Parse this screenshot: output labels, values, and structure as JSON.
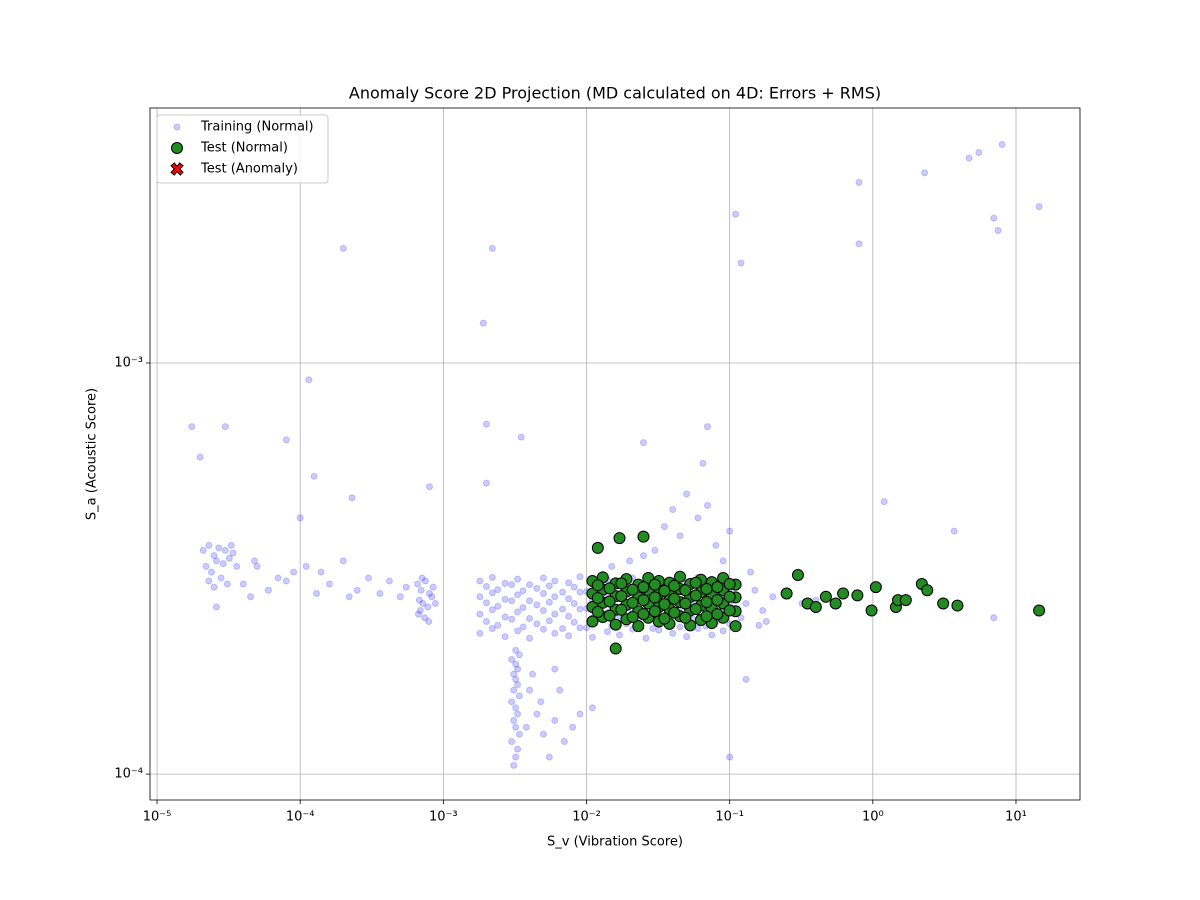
{
  "chart_data": {
    "type": "scatter",
    "title": "Anomaly Score 2D Projection (MD calculated on 4D: Errors + RMS)",
    "x_label": "S_v (Vibration Score)",
    "y_label": "S_a (Acoustic Score)",
    "xscale": "log",
    "yscale": "log",
    "grid": true,
    "legend": "upper left",
    "xlim": [
      8.93e-06,
      28
    ],
    "ylim": [
      8.65e-05,
      0.00417
    ],
    "xticks": [
      {
        "value": 1e-05,
        "label": "10⁻⁵"
      },
      {
        "value": 0.0001,
        "label": "10⁻⁴"
      },
      {
        "value": 0.001,
        "label": "10⁻³"
      },
      {
        "value": 0.01,
        "label": "10⁻²"
      },
      {
        "value": 0.1,
        "label": "10⁻¹"
      },
      {
        "value": 1,
        "label": "10⁰"
      },
      {
        "value": 10,
        "label": "10¹"
      }
    ],
    "yticks": [
      {
        "value": 0.0001,
        "label": "10⁻⁴"
      },
      {
        "value": 0.001,
        "label": "10⁻³"
      }
    ],
    "series": [
      {
        "name": "Training (Normal)",
        "color": "#0000ff",
        "alpha": 0.2,
        "marker": "o",
        "size": 3,
        "x": [
          2.1e-05,
          2.3e-05,
          2.5e-05,
          2.7e-05,
          3e-05,
          3.3e-05,
          2.2e-05,
          2.4e-05,
          2.6e-05,
          2.9e-05,
          3.2e-05,
          3.6e-05,
          2.3e-05,
          2.5e-05,
          2.8e-05,
          3.1e-05,
          2.6e-05,
          3.4e-05,
          4e-05,
          4.5e-05,
          5e-05,
          6e-05,
          7e-05,
          8e-05,
          9e-05,
          0.00011,
          0.00013,
          0.00016,
          0.0002,
          0.00025,
          0.0003,
          0.00036,
          0.00042,
          0.0005,
          0.00055,
          4.8e-05,
          0.00014,
          0.00022,
          0.00066,
          0.0007,
          0.00075,
          0.0008,
          0.00085,
          0.00068,
          0.00072,
          0.00078,
          0.00083,
          0.00067,
          0.00074,
          0.00088,
          0.00071,
          0.00079,
          0.00069,
          0.0018,
          0.0022,
          0.0027,
          0.0033,
          0.004,
          0.005,
          0.006,
          0.0075,
          0.009,
          0.011,
          0.014,
          0.017,
          0.021,
          0.026,
          0.032,
          0.04,
          0.05,
          0.06,
          0.075,
          0.09,
          0.0018,
          0.0022,
          0.0027,
          0.0033,
          0.004,
          0.005,
          0.006,
          0.0075,
          0.009,
          0.011,
          0.014,
          0.017,
          0.021,
          0.026,
          0.032,
          0.04,
          0.05,
          0.06,
          0.075,
          0.09,
          0.0018,
          0.0022,
          0.0027,
          0.0033,
          0.004,
          0.005,
          0.006,
          0.0075,
          0.009,
          0.011,
          0.014,
          0.017,
          0.021,
          0.026,
          0.032,
          0.04,
          0.05,
          0.06,
          0.075,
          0.09,
          0.0018,
          0.0022,
          0.0027,
          0.0033,
          0.004,
          0.005,
          0.006,
          0.0075,
          0.009,
          0.011,
          0.014,
          0.017,
          0.021,
          0.026,
          0.032,
          0.04,
          0.05,
          0.06,
          0.075,
          0.09,
          0.002,
          0.0024,
          0.003,
          0.0036,
          0.0045,
          0.0055,
          0.0068,
          0.0082,
          0.01,
          0.0125,
          0.015,
          0.019,
          0.023,
          0.029,
          0.036,
          0.045,
          0.055,
          0.068,
          0.082,
          0.1,
          0.002,
          0.0024,
          0.003,
          0.0036,
          0.0045,
          0.0055,
          0.0068,
          0.0082,
          0.01,
          0.0125,
          0.015,
          0.019,
          0.023,
          0.029,
          0.036,
          0.045,
          0.055,
          0.068,
          0.082,
          0.1,
          0.002,
          0.0024,
          0.003,
          0.0036,
          0.0045,
          0.0055,
          0.0068,
          0.0082,
          0.01,
          0.0125,
          0.015,
          0.019,
          0.023,
          0.029,
          0.036,
          0.045,
          0.055,
          0.068,
          0.082,
          0.1,
          0.0031,
          0.0032,
          0.0033,
          0.003,
          0.0034,
          0.0032,
          0.0031,
          0.0033,
          0.0032,
          0.003,
          0.0034,
          0.0031,
          0.0033,
          0.0032,
          0.0031,
          0.0033,
          0.0032,
          0.003,
          0.0034,
          0.0032,
          0.004,
          0.0045,
          0.005,
          0.0055,
          0.006,
          0.007,
          0.008,
          0.0042,
          0.0048,
          0.0065,
          0.009,
          0.011,
          0.0038,
          0.006,
          0.02,
          0.03,
          0.045,
          0.06,
          0.07,
          0.08,
          0.1,
          0.05,
          0.035,
          0.065,
          0.015,
          0.025,
          0.09,
          0.04,
          0.11,
          0.13,
          0.15,
          0.17,
          0.2,
          0.12,
          0.14,
          0.18,
          0.25,
          0.32,
          0.4,
          0.16,
          1.75e-05,
          2e-05,
          3e-05,
          0.000115,
          0.0002,
          0.0022,
          0.0019,
          0.11,
          0.12,
          0.8,
          0.8,
          2.3,
          4.7,
          5.5,
          8,
          14.5,
          7,
          7.5,
          1.2,
          3.7,
          7,
          0.1,
          0.13,
          0.0001,
          0.000125,
          0.00023,
          8e-05,
          0.0035,
          0.002,
          0.002,
          0.025,
          0.07,
          0.0008
        ],
        "y": [
          0.00035,
          0.00036,
          0.00034,
          0.000355,
          0.00035,
          0.00036,
          0.00032,
          0.00031,
          0.00033,
          0.000325,
          0.000335,
          0.00032,
          0.000295,
          0.000285,
          0.0003,
          0.00029,
          0.000255,
          0.000345,
          0.00029,
          0.00027,
          0.00032,
          0.00028,
          0.0003,
          0.000295,
          0.00031,
          0.00032,
          0.000275,
          0.00029,
          0.00033,
          0.00028,
          0.0003,
          0.000275,
          0.000295,
          0.00027,
          0.000285,
          0.00033,
          0.00031,
          0.00027,
          0.00029,
          0.00028,
          0.000295,
          0.000275,
          0.000285,
          0.000265,
          0.00026,
          0.000255,
          0.00027,
          0.000245,
          0.00024,
          0.00026,
          0.0003,
          0.000235,
          0.00025,
          0.00022,
          0.000226,
          0.000216,
          0.000223,
          0.000214,
          0.000225,
          0.00022,
          0.000217,
          0.000227,
          0.000215,
          0.000222,
          0.000218,
          0.000225,
          0.000214,
          0.000224,
          0.00022,
          0.000216,
          0.000226,
          0.000218,
          0.000223,
          0.000245,
          0.000251,
          0.000241,
          0.000248,
          0.000239,
          0.00025,
          0.000245,
          0.000242,
          0.000252,
          0.00024,
          0.000247,
          0.000243,
          0.00025,
          0.000239,
          0.000249,
          0.000245,
          0.000241,
          0.000251,
          0.000243,
          0.000248,
          0.00027,
          0.000276,
          0.000266,
          0.000273,
          0.000264,
          0.000275,
          0.00027,
          0.000267,
          0.000277,
          0.000265,
          0.000272,
          0.000268,
          0.000275,
          0.000264,
          0.000274,
          0.00027,
          0.000266,
          0.000276,
          0.000268,
          0.000273,
          0.000295,
          0.000301,
          0.000291,
          0.000298,
          0.000289,
          0.0003,
          0.000295,
          0.000292,
          0.000302,
          0.00029,
          0.000297,
          0.000293,
          0.0003,
          0.000289,
          0.000299,
          0.000295,
          0.000291,
          0.000301,
          0.000293,
          0.000298,
          0.000235,
          0.00023,
          0.000238,
          0.000228,
          0.000232,
          0.000236,
          0.000226,
          0.000234,
          0.000227,
          0.000239,
          0.000229,
          0.000232,
          0.000237,
          0.000226,
          0.000235,
          0.000228,
          0.000238,
          0.000229,
          0.000236,
          0.000232,
          0.000261,
          0.000256,
          0.000264,
          0.000254,
          0.000258,
          0.000262,
          0.000252,
          0.00026,
          0.000253,
          0.000265,
          0.000255,
          0.000258,
          0.000263,
          0.000252,
          0.000261,
          0.000254,
          0.000264,
          0.000255,
          0.000262,
          0.000258,
          0.000286,
          0.000281,
          0.000289,
          0.000279,
          0.000283,
          0.000287,
          0.000277,
          0.000285,
          0.000278,
          0.00029,
          0.00028,
          0.000283,
          0.000288,
          0.000277,
          0.000286,
          0.000279,
          0.000289,
          0.00028,
          0.000287,
          0.000283,
          0.000105,
          0.00011,
          0.000115,
          0.00012,
          0.000125,
          0.00013,
          0.000135,
          0.00014,
          0.000145,
          0.00015,
          0.000155,
          0.00016,
          0.000165,
          0.00017,
          0.000175,
          0.00018,
          0.000185,
          0.00019,
          0.000195,
          0.0002,
          0.00016,
          0.00014,
          0.000125,
          0.00011,
          0.000135,
          0.00012,
          0.00013,
          0.000175,
          0.00015,
          0.00016,
          0.00014,
          0.000145,
          0.00013,
          0.00018,
          0.00033,
          0.00035,
          0.00038,
          0.00042,
          0.00045,
          0.00036,
          0.00039,
          0.00048,
          0.0004,
          0.00057,
          0.00032,
          0.00034,
          0.00033,
          0.00044,
          0.00029,
          0.00026,
          0.00028,
          0.00025,
          0.00027,
          0.00024,
          0.00031,
          0.000235,
          0.000275,
          0.00026,
          0.000265,
          0.00023,
          0.0007,
          0.00059,
          0.0007,
          0.00091,
          0.0019,
          0.0019,
          0.00125,
          0.0023,
          0.00175,
          0.00275,
          0.00195,
          0.0029,
          0.00315,
          0.00325,
          0.0034,
          0.0024,
          0.00225,
          0.0021,
          0.00046,
          0.00039,
          0.00024,
          0.00011,
          0.00017,
          0.00042,
          0.00053,
          0.00047,
          0.00065,
          0.00066,
          0.00071,
          0.00051,
          0.00064,
          0.0007,
          0.0005
        ]
      },
      {
        "name": "Test (Normal)",
        "color": "#228b22",
        "edgecolor": "#000000",
        "alpha": 1,
        "marker": "o",
        "size": 5.5,
        "x": [
          0.011,
          0.013,
          0.016,
          0.019,
          0.023,
          0.027,
          0.032,
          0.038,
          0.045,
          0.053,
          0.063,
          0.075,
          0.09,
          0.11,
          0.011,
          0.013,
          0.016,
          0.019,
          0.023,
          0.027,
          0.032,
          0.038,
          0.045,
          0.053,
          0.063,
          0.075,
          0.09,
          0.11,
          0.011,
          0.013,
          0.016,
          0.019,
          0.023,
          0.027,
          0.032,
          0.038,
          0.045,
          0.053,
          0.063,
          0.075,
          0.09,
          0.11,
          0.011,
          0.013,
          0.016,
          0.019,
          0.023,
          0.027,
          0.032,
          0.038,
          0.045,
          0.053,
          0.063,
          0.075,
          0.09,
          0.11,
          0.012,
          0.0145,
          0.0175,
          0.021,
          0.025,
          0.03,
          0.035,
          0.041,
          0.049,
          0.058,
          0.069,
          0.082,
          0.1,
          0.012,
          0.0145,
          0.0175,
          0.021,
          0.025,
          0.03,
          0.035,
          0.041,
          0.049,
          0.058,
          0.069,
          0.082,
          0.1,
          0.012,
          0.0145,
          0.0175,
          0.021,
          0.025,
          0.03,
          0.035,
          0.041,
          0.049,
          0.058,
          0.069,
          0.082,
          0.1,
          0.25,
          0.3,
          0.35,
          0.4,
          0.47,
          0.55,
          0.62,
          0.78,
          0.98,
          1.05,
          1.45,
          1.5,
          1.7,
          2.2,
          2.4,
          3.1,
          3.9,
          14.5,
          0.012,
          0.017,
          0.025,
          0.016
        ],
        "y": [
          0.000235,
          0.000241,
          0.000231,
          0.000238,
          0.000229,
          0.00024,
          0.000235,
          0.000232,
          0.000242,
          0.00023,
          0.000237,
          0.000233,
          0.00024,
          0.000229,
          0.000255,
          0.000261,
          0.000251,
          0.000258,
          0.000249,
          0.00026,
          0.000255,
          0.000252,
          0.000262,
          0.00025,
          0.000257,
          0.000253,
          0.00026,
          0.000249,
          0.000275,
          0.000281,
          0.000271,
          0.000278,
          0.000269,
          0.00028,
          0.000275,
          0.000272,
          0.000282,
          0.00027,
          0.000277,
          0.000273,
          0.00028,
          0.000269,
          0.000295,
          0.000301,
          0.000291,
          0.000298,
          0.000289,
          0.0003,
          0.000295,
          0.000292,
          0.000302,
          0.00029,
          0.000297,
          0.000293,
          0.0003,
          0.000289,
          0.000248,
          0.000243,
          0.000251,
          0.000241,
          0.000245,
          0.000249,
          0.000239,
          0.000247,
          0.00024,
          0.000252,
          0.000242,
          0.000245,
          0.00025,
          0.000268,
          0.000263,
          0.000271,
          0.000261,
          0.000265,
          0.000269,
          0.000259,
          0.000267,
          0.00026,
          0.000272,
          0.000262,
          0.000265,
          0.00027,
          0.000288,
          0.000283,
          0.000291,
          0.000281,
          0.000285,
          0.000289,
          0.000279,
          0.000287,
          0.00028,
          0.000292,
          0.000282,
          0.000285,
          0.00029,
          0.000275,
          0.000305,
          0.00026,
          0.000255,
          0.00027,
          0.00026,
          0.000275,
          0.000272,
          0.00025,
          0.000285,
          0.000255,
          0.000265,
          0.000265,
          0.00029,
          0.00028,
          0.00026,
          0.000257,
          0.00025,
          0.000355,
          0.000375,
          0.000378,
          0.000202
        ]
      },
      {
        "name": "Test (Anomaly)",
        "color": "#ff0000",
        "edgecolor": "#000000",
        "alpha": 1,
        "marker": "X",
        "size": 6,
        "x": [],
        "y": []
      }
    ]
  }
}
